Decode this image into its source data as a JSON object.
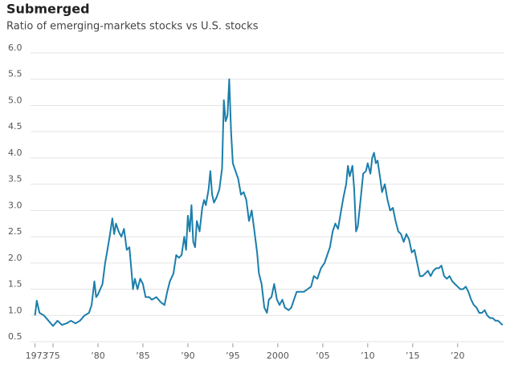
{
  "chart_data": {
    "type": "line",
    "title": "Submerged",
    "subtitle": "Ratio of emerging-markets stocks vs U.S. stocks",
    "color": "#1b7eab",
    "grid": true,
    "xlim": [
      1972.5,
      2025.2
    ],
    "xticks": [
      1973,
      {
        "value": 1975,
        "label": "’75"
      },
      {
        "value": 1980,
        "label": "’80"
      },
      {
        "value": 1985,
        "label": "’85"
      },
      {
        "value": 1990,
        "label": "’90"
      },
      {
        "value": 1995,
        "label": "’95"
      },
      2000,
      {
        "value": 2005,
        "label": "’05"
      },
      {
        "value": 2010,
        "label": "’10"
      },
      {
        "value": 2015,
        "label": "’15"
      },
      {
        "value": 2020,
        "label": "’20"
      }
    ],
    "ylim": [
      0.5,
      6.0
    ],
    "yticks": [
      0.5,
      {
        "value": 1,
        "label": "1.0"
      },
      1.5,
      {
        "value": 2,
        "label": "2.0"
      },
      2.5,
      {
        "value": 3,
        "label": "3.0"
      },
      3.5,
      {
        "value": 4,
        "label": "4.0"
      },
      4.5,
      {
        "value": 5,
        "label": "5.0"
      },
      5.5,
      {
        "value": 6,
        "label": "6.0"
      }
    ],
    "x": [
      1973.0,
      1973.2,
      1973.5,
      1974,
      1974.5,
      1975,
      1975.5,
      1976,
      1976.5,
      1977,
      1977.5,
      1978,
      1978.5,
      1979,
      1979.3,
      1979.6,
      1979.8,
      1980,
      1980.5,
      1980.8,
      1981,
      1981.3,
      1981.6,
      1981.8,
      1982,
      1982.3,
      1982.6,
      1982.9,
      1983.2,
      1983.5,
      1983.7,
      1983.9,
      1984.1,
      1984.4,
      1984.7,
      1985,
      1985.3,
      1985.7,
      1986,
      1986.5,
      1987,
      1987.4,
      1987.7,
      1988,
      1988.4,
      1988.7,
      1989,
      1989.3,
      1989.6,
      1989.8,
      1990,
      1990.2,
      1990.4,
      1990.6,
      1990.8,
      1991,
      1991.3,
      1991.6,
      1991.8,
      1992,
      1992.3,
      1992.5,
      1992.7,
      1992.9,
      1993.2,
      1993.5,
      1993.8,
      1994,
      1994.2,
      1994.4,
      1994.6,
      1994.8,
      1995,
      1995.2,
      1995.6,
      1995.9,
      1996.2,
      1996.5,
      1996.8,
      1997.1,
      1997.4,
      1997.7,
      1997.9,
      1998.2,
      1998.5,
      1998.8,
      1999,
      1999.3,
      1999.6,
      1999.9,
      2000.2,
      2000.5,
      2000.8,
      2001.2,
      2001.5,
      2001.8,
      2002.1,
      2002.5,
      2002.9,
      2003.3,
      2003.7,
      2004,
      2004.4,
      2004.8,
      2005.2,
      2005.5,
      2005.8,
      2006.1,
      2006.4,
      2006.7,
      2007,
      2007.3,
      2007.6,
      2007.8,
      2008,
      2008.3,
      2008.5,
      2008.7,
      2008.9,
      2009.2,
      2009.5,
      2009.8,
      2010,
      2010.3,
      2010.5,
      2010.7,
      2010.9,
      2011.1,
      2011.4,
      2011.6,
      2011.9,
      2012.2,
      2012.5,
      2012.8,
      2013.1,
      2013.4,
      2013.7,
      2014,
      2014.3,
      2014.6,
      2014.9,
      2015.2,
      2015.5,
      2015.8,
      2016.1,
      2016.4,
      2016.7,
      2017,
      2017.3,
      2017.6,
      2017.9,
      2018.2,
      2018.5,
      2018.8,
      2019.1,
      2019.4,
      2019.7,
      2020,
      2020.3,
      2020.6,
      2020.9,
      2021.2,
      2021.5,
      2021.8,
      2022.1,
      2022.4,
      2022.7,
      2023,
      2023.3,
      2023.6,
      2023.9,
      2024.2,
      2024.5,
      2024.8,
      2025
    ],
    "values": [
      1.0,
      1.28,
      1.05,
      1.0,
      0.9,
      0.8,
      0.9,
      0.82,
      0.85,
      0.9,
      0.85,
      0.9,
      1.0,
      1.05,
      1.2,
      1.65,
      1.35,
      1.4,
      1.6,
      2.0,
      2.2,
      2.5,
      2.85,
      2.55,
      2.75,
      2.6,
      2.5,
      2.65,
      2.25,
      2.3,
      1.9,
      1.5,
      1.7,
      1.5,
      1.7,
      1.6,
      1.35,
      1.35,
      1.3,
      1.35,
      1.25,
      1.2,
      1.45,
      1.65,
      1.8,
      2.15,
      2.1,
      2.15,
      2.5,
      2.25,
      2.9,
      2.6,
      3.1,
      2.4,
      2.3,
      2.8,
      2.6,
      3.05,
      3.2,
      3.1,
      3.4,
      3.75,
      3.3,
      3.15,
      3.25,
      3.4,
      3.8,
      5.1,
      4.7,
      4.8,
      5.5,
      4.5,
      3.9,
      3.8,
      3.6,
      3.3,
      3.35,
      3.2,
      2.8,
      3.0,
      2.6,
      2.2,
      1.8,
      1.6,
      1.15,
      1.05,
      1.3,
      1.35,
      1.6,
      1.3,
      1.2,
      1.3,
      1.15,
      1.1,
      1.15,
      1.3,
      1.45,
      1.45,
      1.45,
      1.5,
      1.55,
      1.75,
      1.7,
      1.9,
      2.0,
      2.15,
      2.3,
      2.6,
      2.75,
      2.65,
      2.95,
      3.25,
      3.5,
      3.85,
      3.65,
      3.85,
      3.4,
      2.6,
      2.7,
      3.2,
      3.7,
      3.75,
      3.9,
      3.7,
      4.0,
      4.1,
      3.9,
      3.95,
      3.6,
      3.35,
      3.5,
      3.2,
      3.0,
      3.05,
      2.8,
      2.6,
      2.55,
      2.4,
      2.55,
      2.45,
      2.2,
      2.25,
      2.0,
      1.75,
      1.75,
      1.8,
      1.85,
      1.75,
      1.85,
      1.9,
      1.9,
      1.95,
      1.75,
      1.7,
      1.75,
      1.65,
      1.6,
      1.55,
      1.5,
      1.5,
      1.55,
      1.45,
      1.3,
      1.2,
      1.15,
      1.05,
      1.05,
      1.1,
      1.0,
      0.95,
      0.95,
      0.9,
      0.9,
      0.85,
      0.82
    ]
  }
}
